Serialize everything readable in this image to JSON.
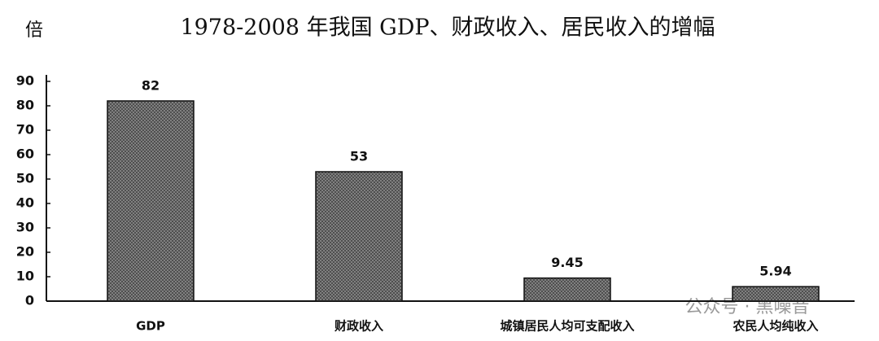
{
  "chart_data": {
    "type": "bar",
    "title": "1978-2008 年我国 GDP、财政收入、居民收入的增幅",
    "y_label": "倍",
    "categories": [
      "GDP",
      "财政收入",
      "城镇居民人均可支配收入",
      "农民人均纯收入"
    ],
    "values": [
      82,
      53,
      9.45,
      5.94
    ],
    "color": "#8a8a8a",
    "ylim": [
      0,
      90
    ],
    "yticks": [
      0,
      10,
      20,
      30,
      40,
      50,
      60,
      70,
      80,
      90
    ],
    "watermark": "公众号 · 黑噪音"
  }
}
